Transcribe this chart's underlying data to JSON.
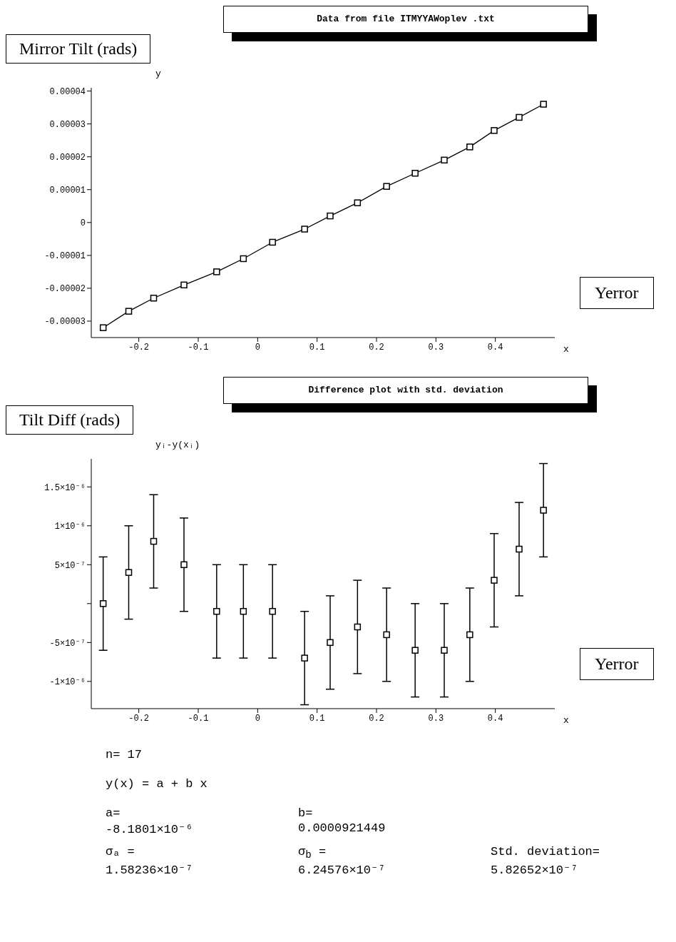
{
  "chart_data": [
    {
      "type": "line",
      "title": "Data from file ITMYYAWoplev .txt",
      "ylabel": "Mirror Tilt (rads)",
      "xlabel": "x",
      "annotations": [
        "y",
        "Yerror"
      ],
      "marker": "square",
      "line_style": "solid",
      "x": [
        -0.26,
        -0.217,
        -0.175,
        -0.124,
        -0.069,
        -0.024,
        0.025,
        0.079,
        0.122,
        0.168,
        0.217,
        0.265,
        0.314,
        0.357,
        0.398,
        0.44,
        0.481
      ],
      "series": [
        {
          "color": "#000000",
          "values": [
            -3.2e-05,
            -2.7e-05,
            -2.3e-05,
            -1.9e-05,
            -1.5e-05,
            -1.1e-05,
            -6e-06,
            -2e-06,
            2e-06,
            6e-06,
            1.1e-05,
            1.5e-05,
            1.9e-05,
            2.3e-05,
            2.8e-05,
            3.2e-05,
            3.6e-05
          ]
        }
      ],
      "xlim": [
        -0.28,
        0.5
      ],
      "xticks": [
        -0.2,
        -0.1,
        0,
        0.1,
        0.2,
        0.3,
        0.4
      ],
      "ylim": [
        -3.5e-05,
        4.1e-05
      ],
      "yticks": [
        {
          "value": -3e-05,
          "label": "-0.00003"
        },
        {
          "value": -2e-05,
          "label": "-0.00002"
        },
        {
          "value": -1e-05,
          "label": "-0.00001"
        },
        0,
        {
          "value": 1e-05,
          "label": "0.00001"
        },
        {
          "value": 2e-05,
          "label": "0.00002"
        },
        {
          "value": 3e-05,
          "label": "0.00003"
        },
        {
          "value": 4e-05,
          "label": "0.00004"
        }
      ]
    },
    {
      "type": "scatter",
      "title": "Difference plot with std. deviation",
      "ylabel": "Tilt Diff (rads)",
      "xlabel": "x",
      "annotations": [
        "yᵢ-y(xᵢ)",
        "Yerror"
      ],
      "marker": "square",
      "x": [
        -0.26,
        -0.217,
        -0.175,
        -0.124,
        -0.069,
        -0.024,
        0.025,
        0.079,
        0.122,
        0.168,
        0.217,
        0.265,
        0.314,
        0.357,
        0.398,
        0.44,
        0.481
      ],
      "series": [
        {
          "color": "#000000",
          "values": [
            0,
            4e-07,
            8e-07,
            5e-07,
            -1e-07,
            -1e-07,
            -1e-07,
            -7e-07,
            -5e-07,
            -3e-07,
            -4e-07,
            -6e-07,
            -6e-07,
            -4e-07,
            3e-07,
            7e-07,
            1.2e-06
          ],
          "errors": [
            6e-07,
            6e-07,
            6e-07,
            6e-07,
            6e-07,
            6e-07,
            6e-07,
            6e-07,
            6e-07,
            6e-07,
            6e-07,
            6e-07,
            6e-07,
            6e-07,
            6e-07,
            6e-07,
            6e-07
          ]
        }
      ],
      "xlim": [
        -0.28,
        0.5
      ],
      "xticks": [
        -0.2,
        -0.1,
        0,
        0.1,
        0.2,
        0.3,
        0.4
      ],
      "ylim": [
        -1.35e-06,
        1.86e-06
      ],
      "yticks": [
        {
          "value": -1e-06,
          "label": "-1×10⁻⁶"
        },
        {
          "value": -5e-07,
          "label": "-5×10⁻⁷"
        },
        {
          "value": 0,
          "label": null
        },
        {
          "value": 5e-07,
          "label": "5×10⁻⁷"
        },
        {
          "value": 1e-06,
          "label": "1×10⁻⁶"
        },
        {
          "value": 1.5e-06,
          "label": "1.5×10⁻⁶"
        }
      ]
    },
    {
      "type": "other",
      "annotations": [
        "n= 17",
        "y(x) = a + b x",
        "a=",
        "b=",
        "-8.1801×10⁻⁶",
        "0.0000921449",
        "σₐ =",
        "σ$_{b}$ =",
        "Std. deviation=",
        "1.58236×10⁻⁷",
        "6.24576×10⁻⁷",
        "5.82652×10⁻⁷"
      ]
    }
  ]
}
